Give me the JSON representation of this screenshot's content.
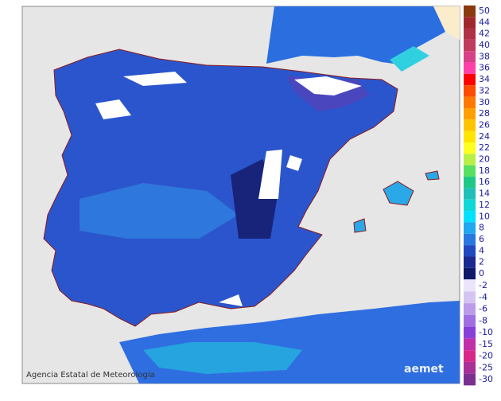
{
  "legend": {
    "items": [
      {
        "label": 50,
        "color": "#8b3a10"
      },
      {
        "label": 44,
        "color": "#a0282d"
      },
      {
        "label": 42,
        "color": "#b03045"
      },
      {
        "label": 40,
        "color": "#c03a5e"
      },
      {
        "label": 38,
        "color": "#d84088"
      },
      {
        "label": 36,
        "color": "#ff40a8"
      },
      {
        "label": 34,
        "color": "#ff0000"
      },
      {
        "label": 32,
        "color": "#ff4a00"
      },
      {
        "label": 30,
        "color": "#ff7800"
      },
      {
        "label": 28,
        "color": "#ffa000"
      },
      {
        "label": 26,
        "color": "#ffc400"
      },
      {
        "label": 24,
        "color": "#ffe400"
      },
      {
        "label": 22,
        "color": "#ffff20"
      },
      {
        "label": 20,
        "color": "#b8f048"
      },
      {
        "label": 18,
        "color": "#58e060"
      },
      {
        "label": 16,
        "color": "#20c888"
      },
      {
        "label": 14,
        "color": "#20c0b8"
      },
      {
        "label": 12,
        "color": "#10d8d8"
      },
      {
        "label": 10,
        "color": "#00e0ff"
      },
      {
        "label": 8,
        "color": "#20a8f0"
      },
      {
        "label": 6,
        "color": "#2878e0"
      },
      {
        "label": 4,
        "color": "#2048c0"
      },
      {
        "label": 2,
        "color": "#1a2a90"
      },
      {
        "label": 0,
        "color": "#101a68"
      },
      {
        "label": -2,
        "color": "#ece4fa"
      },
      {
        "label": -4,
        "color": "#d4c4f2"
      },
      {
        "label": -6,
        "color": "#bc9cea"
      },
      {
        "label": -8,
        "color": "#a070e2"
      },
      {
        "label": -10,
        "color": "#8840d8"
      },
      {
        "label": -15,
        "color": "#c030a8"
      },
      {
        "label": -20,
        "color": "#d82888"
      },
      {
        "label": -25,
        "color": "#a83098"
      },
      {
        "label": -30,
        "color": "#7a3090"
      }
    ]
  },
  "footer": {
    "agency": "Agencia Estatal de Meteorología",
    "logo": "aemet"
  }
}
